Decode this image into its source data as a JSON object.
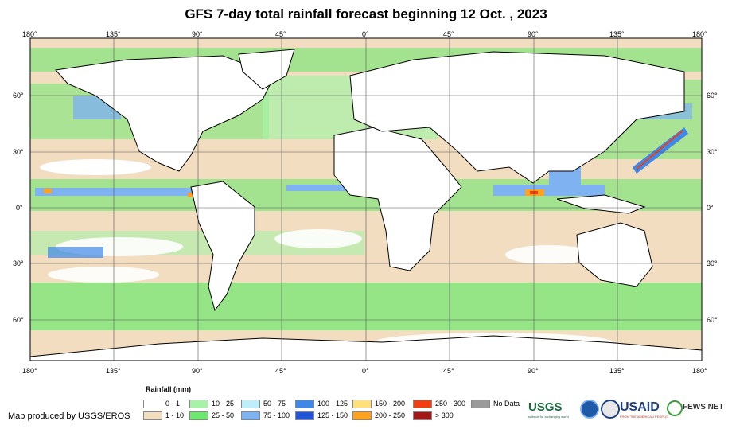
{
  "title": "GFS 7-day total rainfall forecast beginning 12 Oct. , 2023",
  "lon_labels": [
    "180°",
    "135°",
    "90°",
    "45°",
    "0°",
    "45°",
    "90°",
    "135°",
    "180°"
  ],
  "lat_labels": [
    "60°",
    "30°",
    "0°",
    "30°",
    "60°"
  ],
  "legend": {
    "title": "Rainfall (mm)",
    "classes": [
      {
        "label": "0 - 1",
        "color": "#ffffff"
      },
      {
        "label": "1 - 10",
        "color": "#f2ddc0"
      },
      {
        "label": "10 - 25",
        "color": "#a6f2a6"
      },
      {
        "label": "25 - 50",
        "color": "#6ee86e"
      },
      {
        "label": "50 - 75",
        "color": "#bfeefb"
      },
      {
        "label": "75 - 100",
        "color": "#7fb2f0"
      },
      {
        "label": "100 - 125",
        "color": "#3f87e8"
      },
      {
        "label": "125 - 150",
        "color": "#2254d8"
      },
      {
        "label": "150 - 200",
        "color": "#ffe07a"
      },
      {
        "label": "200 - 250",
        "color": "#ffa21f"
      },
      {
        "label": "250 - 300",
        "color": "#f04010"
      },
      {
        "label": "> 300",
        "color": "#a01818"
      },
      {
        "label": "No Data",
        "color": "#9a9a9a"
      }
    ]
  },
  "credit": "Map produced by USGS/EROS",
  "logos": {
    "usgs": "USGS",
    "usgs_tag": "science for a changing world",
    "usaid": "USAID",
    "usaid_tag": "FROM THE AMERICAN PEOPLE",
    "fews": "FEWS NET"
  }
}
